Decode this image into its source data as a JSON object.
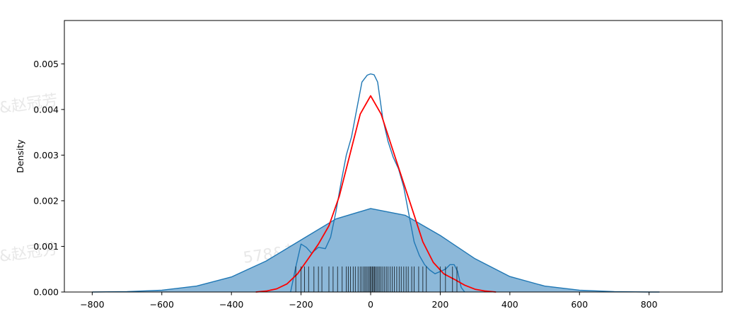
{
  "chart_data": {
    "type": "area",
    "title": "",
    "xlabel": "",
    "ylabel": "Density",
    "xlim": [
      -880,
      1010
    ],
    "ylim": [
      0,
      0.00595
    ],
    "x_ticks": [
      -800,
      -600,
      -400,
      -200,
      0,
      200,
      400,
      600,
      800
    ],
    "x_tick_labels": [
      "−800",
      "−600",
      "−400",
      "−200",
      "0",
      "200",
      "400",
      "600",
      "800"
    ],
    "y_ticks": [
      0,
      0.001,
      0.002,
      0.003,
      0.004,
      0.005
    ],
    "y_tick_labels": [
      "0.000",
      "0.001",
      "0.002",
      "0.003",
      "0.004",
      "0.005"
    ],
    "grid": false,
    "series": [
      {
        "kind": "filled-kde",
        "color": "#1f77b4",
        "fill_color": "#8cb8d9",
        "x": [
          -800,
          -700,
          -600,
          -500,
          -400,
          -300,
          -200,
          -100,
          0,
          100,
          200,
          300,
          400,
          500,
          600,
          700,
          800,
          830
        ],
        "y": [
          0.0,
          1e-05,
          4e-05,
          0.00013,
          0.00033,
          0.00068,
          0.00114,
          0.0016,
          0.00183,
          0.00168,
          0.00124,
          0.00073,
          0.00034,
          0.00013,
          4e-05,
          1e-05,
          0.0,
          0.0
        ]
      },
      {
        "kind": "kde",
        "color": "#1f77b4",
        "x": [
          -230,
          -215,
          -200,
          -185,
          -170,
          -150,
          -130,
          -115,
          -100,
          -85,
          -70,
          -55,
          -40,
          -25,
          -10,
          0,
          10,
          20,
          35,
          50,
          65,
          80,
          95,
          110,
          125,
          140,
          155,
          170,
          185,
          200,
          215,
          228,
          240,
          250,
          260,
          270
        ],
        "y": [
          0.0,
          0.00055,
          0.00105,
          0.00098,
          0.00085,
          0.00098,
          0.00095,
          0.0012,
          0.00175,
          0.0024,
          0.003,
          0.0034,
          0.004,
          0.0046,
          0.00475,
          0.00478,
          0.00476,
          0.0046,
          0.0038,
          0.0033,
          0.00295,
          0.0027,
          0.0023,
          0.0017,
          0.0011,
          0.0008,
          0.0006,
          0.00048,
          0.0004,
          0.00045,
          0.0005,
          0.0006,
          0.0006,
          0.00045,
          0.0001,
          0.0
        ]
      },
      {
        "kind": "kde",
        "color": "#ff0000",
        "x": [
          -330,
          -300,
          -270,
          -240,
          -210,
          -180,
          -150,
          -120,
          -90,
          -60,
          -30,
          0,
          30,
          60,
          90,
          120,
          150,
          180,
          210,
          240,
          270,
          300,
          330,
          360
        ],
        "y": [
          0.0,
          2e-05,
          7e-05,
          0.00018,
          0.0004,
          0.00072,
          0.00105,
          0.00145,
          0.0021,
          0.003,
          0.0039,
          0.0043,
          0.0039,
          0.0032,
          0.0025,
          0.0018,
          0.0011,
          0.00065,
          0.0004,
          0.00028,
          0.00015,
          6e-05,
          2e-05,
          0.0
        ]
      }
    ],
    "rug": {
      "color": "#000000",
      "height": 0.00056,
      "x": [
        -215,
        -200,
        -190,
        -178,
        -163,
        -150,
        -140,
        -120,
        -108,
        -95,
        -82,
        -70,
        -64,
        -58,
        -50,
        -44,
        -36,
        -30,
        -25,
        -20,
        -16,
        -12,
        -8,
        -4,
        -1,
        2,
        5,
        8,
        11,
        14,
        18,
        22,
        26,
        30,
        35,
        40,
        45,
        50,
        56,
        62,
        68,
        75,
        82,
        88,
        95,
        102,
        108,
        118,
        125,
        138,
        150,
        160,
        200,
        215,
        235,
        248
      ]
    }
  },
  "watermarks": [
    "&赵冠芳",
    "&赵冠芳",
    "578&赵"
  ]
}
